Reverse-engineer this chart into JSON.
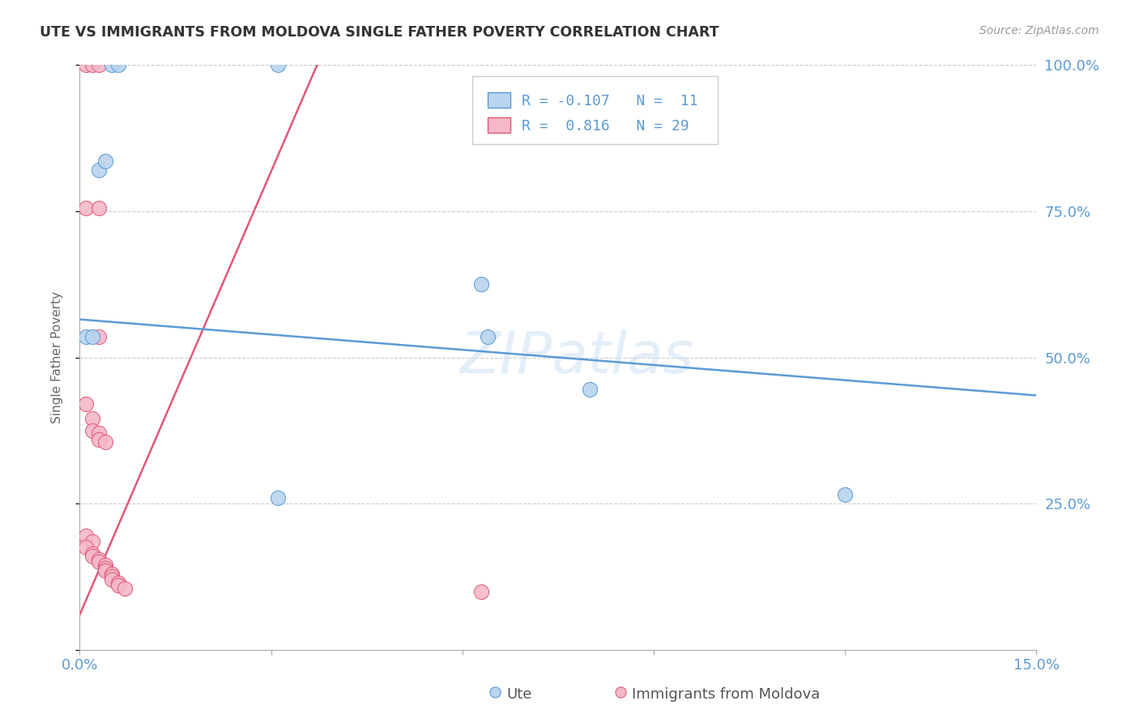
{
  "title": "UTE VS IMMIGRANTS FROM MOLDOVA SINGLE FATHER POVERTY CORRELATION CHART",
  "source": "Source: ZipAtlas.com",
  "ylabel_label": "Single Father Poverty",
  "x_min": 0.0,
  "x_max": 0.15,
  "y_min": 0.0,
  "y_max": 1.0,
  "x_ticks": [
    0.0,
    0.03,
    0.06,
    0.09,
    0.12,
    0.15
  ],
  "y_ticks": [
    0.0,
    0.25,
    0.5,
    0.75,
    1.0
  ],
  "blue_fill": "#b8d4ee",
  "blue_edge": "#5b9bd5",
  "pink_fill": "#f4b8c8",
  "pink_edge": "#e05878",
  "blue_line": "#5b9bd5",
  "pink_line": "#e05878",
  "watermark": "ZIPatlas",
  "ute_points": [
    [
      0.001,
      0.535
    ],
    [
      0.002,
      0.535
    ],
    [
      0.003,
      0.82
    ],
    [
      0.004,
      0.835
    ],
    [
      0.005,
      1.0
    ],
    [
      0.006,
      1.0
    ],
    [
      0.031,
      1.0
    ],
    [
      0.063,
      0.625
    ],
    [
      0.064,
      0.535
    ],
    [
      0.08,
      0.445
    ],
    [
      0.031,
      0.26
    ],
    [
      0.12,
      0.265
    ]
  ],
  "moldova_points": [
    [
      0.001,
      1.0
    ],
    [
      0.002,
      1.0
    ],
    [
      0.003,
      1.0
    ],
    [
      0.001,
      0.755
    ],
    [
      0.003,
      0.755
    ],
    [
      0.003,
      0.535
    ],
    [
      0.001,
      0.42
    ],
    [
      0.002,
      0.395
    ],
    [
      0.002,
      0.375
    ],
    [
      0.003,
      0.37
    ],
    [
      0.003,
      0.36
    ],
    [
      0.004,
      0.355
    ],
    [
      0.001,
      0.195
    ],
    [
      0.002,
      0.185
    ],
    [
      0.001,
      0.175
    ],
    [
      0.002,
      0.165
    ],
    [
      0.002,
      0.16
    ],
    [
      0.003,
      0.155
    ],
    [
      0.003,
      0.15
    ],
    [
      0.004,
      0.145
    ],
    [
      0.004,
      0.14
    ],
    [
      0.004,
      0.135
    ],
    [
      0.005,
      0.13
    ],
    [
      0.005,
      0.125
    ],
    [
      0.005,
      0.12
    ],
    [
      0.006,
      0.115
    ],
    [
      0.006,
      0.11
    ],
    [
      0.007,
      0.105
    ],
    [
      0.063,
      0.1
    ]
  ],
  "ute_trend_x": [
    0.0,
    0.15
  ],
  "ute_trend_y": [
    0.565,
    0.435
  ],
  "moldova_trend_x": [
    0.0,
    0.038
  ],
  "moldova_trend_y": [
    0.06,
    1.02
  ]
}
